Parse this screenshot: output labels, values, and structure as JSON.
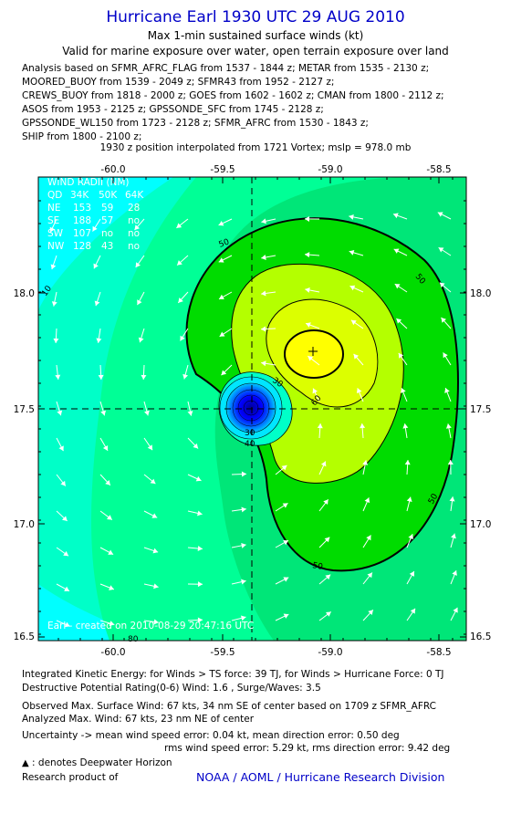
{
  "title": "Hurricane Earl 1930 UTC 29 AUG 2010",
  "subtitle1": "Max 1-min sustained surface winds (kt)",
  "subtitle2": "Valid for marine exposure over water, open terrain exposure over land",
  "analysis_lines": [
    "Analysis based on SFMR_AFRC_FLAG from 1537 - 1844 z; METAR from 1535 - 2130 z;",
    "MOORED_BUOY from 1539 - 2049 z; SFMR43 from 1952 - 2127 z;",
    "CREWS_BUOY from 1818 - 2000 z; GOES from 1602 - 1602 z; CMAN from 1800 - 2112 z;",
    "ASOS from 1953 - 2125 z; GPSSONDE_SFC from 1745 - 2128 z;",
    "GPSSONDE_WL150 from 1723 - 2128 z; SFMR_AFRC from 1530 - 1843 z;",
    "SHIP from 1800 - 2100 z;"
  ],
  "position_note": "1930 z position interpolated from 1721 Vortex; mslp = 978.0 mb",
  "map": {
    "lon_ticks": [
      "-60.0",
      "-59.5",
      "-59.0",
      "-58.5"
    ],
    "lat_ticks": [
      "18.0",
      "17.5",
      "17.0",
      "16.5"
    ],
    "lon_range": [
      -60.3,
      -58.35
    ],
    "lat_range": [
      16.48,
      18.5
    ],
    "center": {
      "lon": -59.37,
      "lat": 17.5
    },
    "max_wind_marker": {
      "lon": -59.05,
      "lat": 17.74
    },
    "contour_labels": [
      "50",
      "50",
      "50",
      "50",
      "60",
      "30",
      "30",
      "40",
      "10",
      "80"
    ],
    "wind_radii": {
      "header": "WIND RADII (NM)",
      "columns": [
        "QD",
        "34K",
        "50K",
        "64K"
      ],
      "rows": [
        [
          "NE",
          "153",
          "59",
          "28"
        ],
        [
          "SE",
          "188",
          "57",
          "no"
        ],
        [
          "SW",
          "107",
          "no",
          "no"
        ],
        [
          "NW",
          "128",
          "43",
          "no"
        ]
      ]
    },
    "credit": "Earl - created on 2010-08-29 20:47:16 UTC",
    "colors": {
      "bg_cyan": "#00ffff",
      "aqua": "#00ffc8",
      "spring": "#00ff96",
      "mint": "#00e678",
      "green": "#32cd32",
      "lime": "#00dc00",
      "yellowgreen": "#b4ff00",
      "yellow": "#ffff00",
      "core_blue": "#0000c8"
    }
  },
  "footer": {
    "ike": "Integrated Kinetic Energy:  for Winds > TS force: 39 TJ,  for Winds > Hurricane Force: 0 TJ",
    "dpr": "Destructive Potential Rating(0-6)   Wind: 1.6 , Surge/Waves: 3.5",
    "obs": "Observed Max. Surface Wind: 67 kts, 34 nm SE of center based on 1709 z SFMR_AFRC",
    "analyzed": "Analyzed Max. Wind: 67 kts, 23 nm NE of center",
    "unc1": "Uncertainty -> mean wind speed error: 0.04 kt,   mean direction error: 0.50 deg",
    "unc2": "rms wind speed error: 5.29 kt,    rms direction error: 9.42 deg",
    "dwh": " : denotes Deepwater Horizon",
    "research": "Research product of",
    "org": "NOAA / AOML / Hurricane Research Division"
  }
}
